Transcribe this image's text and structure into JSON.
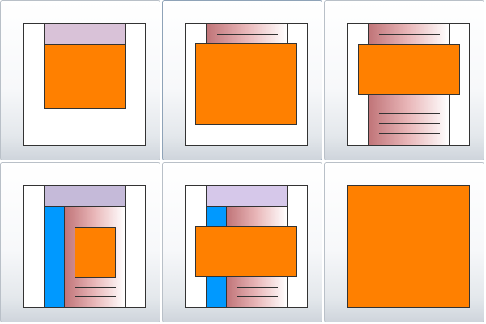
{
  "gallery": {
    "selected_index": 1,
    "colors": {
      "accent_orange": "#ff8000",
      "blue_sidebar": "#0099ff",
      "title_lilac": "#d9c2d8",
      "title_lavender": "#c5bad9",
      "gradient_red": "#c07478"
    },
    "tiles": [
      {
        "name": "layout-title-and-content"
      },
      {
        "name": "layout-content-over-header"
      },
      {
        "name": "layout-content-over-columns"
      },
      {
        "name": "layout-sidebar-with-content"
      },
      {
        "name": "layout-sidebar-wide-content"
      },
      {
        "name": "layout-full-content"
      }
    ]
  }
}
